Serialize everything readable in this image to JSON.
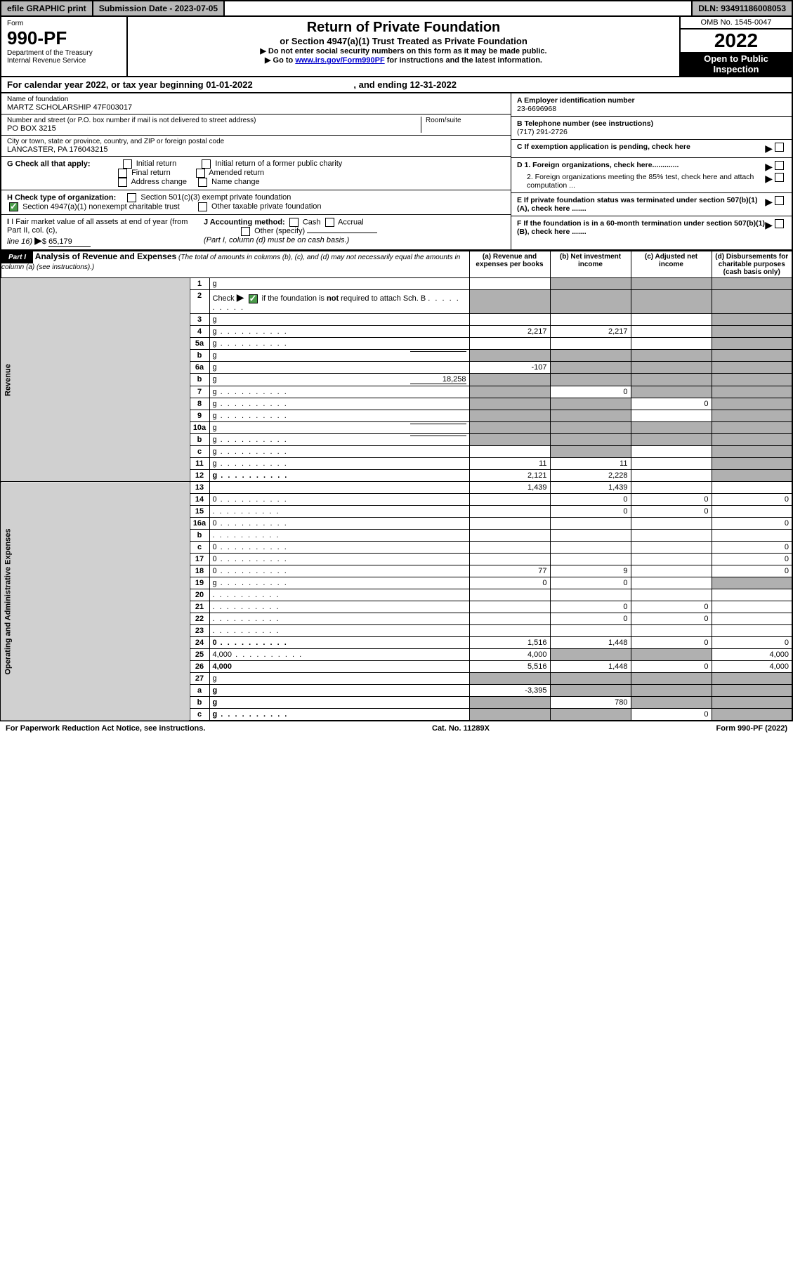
{
  "topbar": {
    "efile": "efile GRAPHIC print",
    "sub_label": "Submission Date - 2023-07-05",
    "dln": "DLN: 93491186008053"
  },
  "header": {
    "form_label": "Form",
    "form_num": "990-PF",
    "dept": "Department of the Treasury",
    "irs": "Internal Revenue Service",
    "title": "Return of Private Foundation",
    "subtitle": "or Section 4947(a)(1) Trust Treated as Private Foundation",
    "note1": "▶ Do not enter social security numbers on this form as it may be made public.",
    "note2_pre": "▶ Go to ",
    "note2_link": "www.irs.gov/Form990PF",
    "note2_post": " for instructions and the latest information.",
    "omb": "OMB No. 1545-0047",
    "year": "2022",
    "inspect1": "Open to Public",
    "inspect2": "Inspection"
  },
  "cal": {
    "text_pre": "For calendar year 2022, or tax year beginning 01-01-2022",
    "text_mid": ", and ending 12-31-2022"
  },
  "ident": {
    "name_label": "Name of foundation",
    "name": "MARTZ SCHOLARSHIP 47F003017",
    "addr_label": "Number and street (or P.O. box number if mail is not delivered to street address)",
    "addr": "PO BOX 3215",
    "room_label": "Room/suite",
    "city_label": "City or town, state or province, country, and ZIP or foreign postal code",
    "city": "LANCASTER, PA  176043215",
    "a_label": "A Employer identification number",
    "a_val": "23-6696968",
    "b_label": "B Telephone number (see instructions)",
    "b_val": "(717) 291-2726",
    "c_label": "C If exemption application is pending, check here",
    "d1": "D 1. Foreign organizations, check here.............",
    "d2": "2. Foreign organizations meeting the 85% test, check here and attach computation ...",
    "e": "E  If private foundation status was terminated under section 507(b)(1)(A), check here .......",
    "f": "F  If the foundation is in a 60-month termination under section 507(b)(1)(B), check here .......",
    "g_label": "G Check all that apply:",
    "g_opts": [
      "Initial return",
      "Initial return of a former public charity",
      "Final return",
      "Amended return",
      "Address change",
      "Name change"
    ],
    "h_label": "H Check type of organization:",
    "h_opt1": "Section 501(c)(3) exempt private foundation",
    "h_opt2": "Section 4947(a)(1) nonexempt charitable trust",
    "h_opt3": "Other taxable private foundation",
    "i_label": "I Fair market value of all assets at end of year (from Part II, col. (c),",
    "i_line": "line 16)",
    "i_val": "65,179",
    "j_label": "J Accounting method:",
    "j_cash": "Cash",
    "j_accrual": "Accrual",
    "j_other": "Other (specify)",
    "j_note": "(Part I, column (d) must be on cash basis.)"
  },
  "part1": {
    "label": "Part I",
    "title": "Analysis of Revenue and Expenses",
    "title_note": "(The total of amounts in columns (b), (c), and (d) may not necessarily equal the amounts in column (a) (see instructions).)",
    "col_a": "(a)   Revenue and expenses per books",
    "col_b": "(b)   Net investment income",
    "col_c": "(c)   Adjusted net income",
    "col_d": "(d)   Disbursements for charitable purposes (cash basis only)",
    "side_rev": "Revenue",
    "side_exp": "Operating and Administrative Expenses"
  },
  "rows": [
    {
      "n": "1",
      "d": "g",
      "a": "",
      "b": "g",
      "c": "g"
    },
    {
      "n": "2",
      "d": "g",
      "dots": true,
      "a": "g",
      "b": "g",
      "c": "g",
      "check": true
    },
    {
      "n": "3",
      "d": "g",
      "a": "",
      "b": "",
      "c": ""
    },
    {
      "n": "4",
      "d": "g",
      "dots": true,
      "a": "2,217",
      "b": "2,217",
      "c": ""
    },
    {
      "n": "5a",
      "d": "g",
      "dots": true,
      "a": "",
      "b": "",
      "c": ""
    },
    {
      "n": "b",
      "d": "g",
      "uline": true,
      "a": "g",
      "b": "g",
      "c": "g"
    },
    {
      "n": "6a",
      "d": "g",
      "a": "-107",
      "b": "g",
      "c": "g"
    },
    {
      "n": "b",
      "d": "g",
      "uline": true,
      "uval": "18,258",
      "a": "g",
      "b": "g",
      "c": "g"
    },
    {
      "n": "7",
      "d": "g",
      "dots": true,
      "a": "g",
      "b": "0",
      "c": "g"
    },
    {
      "n": "8",
      "d": "g",
      "dots": true,
      "a": "g",
      "b": "g",
      "c": "0"
    },
    {
      "n": "9",
      "d": "g",
      "dots": true,
      "a": "g",
      "b": "g",
      "c": ""
    },
    {
      "n": "10a",
      "d": "g",
      "uline": true,
      "a": "g",
      "b": "g",
      "c": "g"
    },
    {
      "n": "b",
      "d": "g",
      "dots": true,
      "uline": true,
      "a": "g",
      "b": "g",
      "c": "g"
    },
    {
      "n": "c",
      "d": "g",
      "dots": true,
      "a": "",
      "b": "g",
      "c": ""
    },
    {
      "n": "11",
      "d": "g",
      "dots": true,
      "a": "11",
      "b": "11",
      "c": ""
    },
    {
      "n": "12",
      "d": "g",
      "dots": true,
      "bold": true,
      "a": "2,121",
      "b": "2,228",
      "c": ""
    },
    {
      "n": "13",
      "d": "",
      "a": "1,439",
      "b": "1,439",
      "c": ""
    },
    {
      "n": "14",
      "d": "0",
      "dots": true,
      "a": "",
      "b": "0",
      "c": "0"
    },
    {
      "n": "15",
      "d": "",
      "dots": true,
      "a": "",
      "b": "0",
      "c": "0"
    },
    {
      "n": "16a",
      "d": "0",
      "dots": true,
      "a": "",
      "b": "",
      "c": ""
    },
    {
      "n": "b",
      "d": "",
      "dots": true,
      "a": "",
      "b": "",
      "c": ""
    },
    {
      "n": "c",
      "d": "0",
      "dots": true,
      "a": "",
      "b": "",
      "c": ""
    },
    {
      "n": "17",
      "d": "0",
      "dots": true,
      "a": "",
      "b": "",
      "c": ""
    },
    {
      "n": "18",
      "d": "0",
      "dots": true,
      "a": "77",
      "b": "9",
      "c": ""
    },
    {
      "n": "19",
      "d": "g",
      "dots": true,
      "a": "0",
      "b": "0",
      "c": ""
    },
    {
      "n": "20",
      "d": "",
      "dots": true,
      "a": "",
      "b": "",
      "c": ""
    },
    {
      "n": "21",
      "d": "",
      "dots": true,
      "a": "",
      "b": "0",
      "c": "0"
    },
    {
      "n": "22",
      "d": "",
      "dots": true,
      "a": "",
      "b": "0",
      "c": "0"
    },
    {
      "n": "23",
      "d": "",
      "dots": true,
      "a": "",
      "b": "",
      "c": ""
    },
    {
      "n": "24",
      "d": "0",
      "dots": true,
      "bold": true,
      "a": "1,516",
      "b": "1,448",
      "c": "0"
    },
    {
      "n": "25",
      "d": "4,000",
      "dots": true,
      "a": "4,000",
      "b": "g",
      "c": "g"
    },
    {
      "n": "26",
      "d": "4,000",
      "bold": true,
      "a": "5,516",
      "b": "1,448",
      "c": "0"
    },
    {
      "n": "27",
      "d": "g",
      "a": "g",
      "b": "g",
      "c": "g"
    },
    {
      "n": "a",
      "d": "g",
      "bold": true,
      "a": "-3,395",
      "b": "g",
      "c": "g"
    },
    {
      "n": "b",
      "d": "g",
      "bold": true,
      "a": "g",
      "b": "780",
      "c": "g"
    },
    {
      "n": "c",
      "d": "g",
      "dots": true,
      "bold": true,
      "a": "g",
      "b": "g",
      "c": "0"
    }
  ],
  "footer": {
    "left": "For Paperwork Reduction Act Notice, see instructions.",
    "mid": "Cat. No. 11289X",
    "right": "Form 990-PF (2022)"
  }
}
